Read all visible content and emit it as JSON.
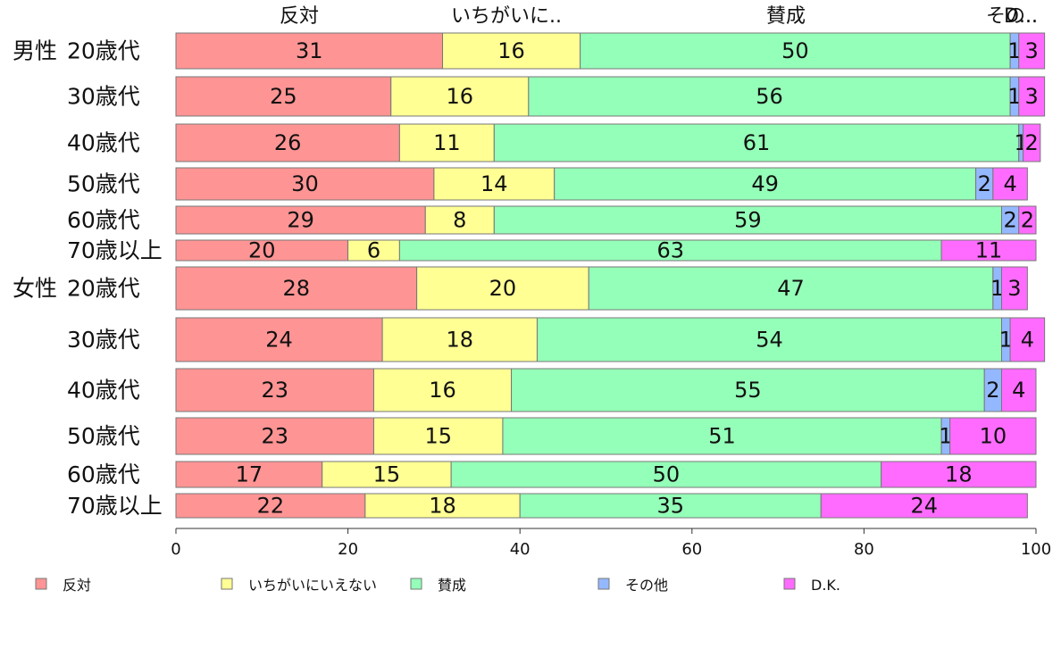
{
  "chart_data": {
    "type": "bar",
    "orientation": "horizontal",
    "stacked": true,
    "xlim": [
      0,
      100
    ],
    "xticks": [
      0,
      20,
      40,
      60,
      80,
      100
    ],
    "grid": false,
    "legend_position": "bottom",
    "column_labels": [
      "反対",
      "いちがいに..",
      "賛成",
      "その..",
      "D..."
    ],
    "series": [
      {
        "name": "反対",
        "color": "#FF9494"
      },
      {
        "name": "いちがいにいえない",
        "color": "#FFFF94"
      },
      {
        "name": "賛成",
        "color": "#94FFB8"
      },
      {
        "name": "その他",
        "color": "#94B8FF"
      },
      {
        "name": "D.K.",
        "color": "#FF6BFF"
      }
    ],
    "groups": [
      "男性",
      "女性"
    ],
    "rows": [
      {
        "group": "男性",
        "label": "20歳代",
        "values": [
          31,
          16,
          50,
          1,
          3
        ],
        "shown": [
          31,
          16,
          50,
          1,
          3
        ]
      },
      {
        "group": "",
        "label": "30歳代",
        "values": [
          25,
          16,
          56,
          1,
          3
        ],
        "shown": [
          25,
          16,
          56,
          1,
          3
        ]
      },
      {
        "group": "",
        "label": "40歳代",
        "values": [
          26,
          11,
          61,
          0.5,
          2
        ],
        "shown": [
          26,
          11,
          61,
          1,
          2
        ]
      },
      {
        "group": "",
        "label": "50歳代",
        "values": [
          30,
          14,
          49,
          2,
          4
        ],
        "shown": [
          30,
          14,
          49,
          2,
          4
        ]
      },
      {
        "group": "",
        "label": "60歳代",
        "values": [
          29,
          8,
          59,
          2,
          2
        ],
        "shown": [
          29,
          8,
          59,
          2,
          2
        ]
      },
      {
        "group": "",
        "label": "70歳以上",
        "values": [
          20,
          6,
          63,
          0,
          11
        ],
        "shown": [
          20,
          6,
          63,
          null,
          11
        ]
      },
      {
        "group": "女性",
        "label": "20歳代",
        "values": [
          28,
          20,
          47,
          1,
          3
        ],
        "shown": [
          28,
          20,
          47,
          1,
          3
        ]
      },
      {
        "group": "",
        "label": "30歳代",
        "values": [
          24,
          18,
          54,
          1,
          4
        ],
        "shown": [
          24,
          18,
          54,
          1,
          4
        ]
      },
      {
        "group": "",
        "label": "40歳代",
        "values": [
          23,
          16,
          55,
          2,
          4
        ],
        "shown": [
          23,
          16,
          55,
          2,
          4
        ]
      },
      {
        "group": "",
        "label": "50歳代",
        "values": [
          23,
          15,
          51,
          1,
          10
        ],
        "shown": [
          23,
          15,
          51,
          1,
          10
        ]
      },
      {
        "group": "",
        "label": "60歳代",
        "values": [
          17,
          15,
          50,
          0,
          18
        ],
        "shown": [
          17,
          15,
          50,
          null,
          18
        ]
      },
      {
        "group": "",
        "label": "70歳以上",
        "values": [
          22,
          18,
          35,
          0,
          24
        ],
        "shown": [
          22,
          18,
          35,
          null,
          24
        ]
      }
    ]
  }
}
